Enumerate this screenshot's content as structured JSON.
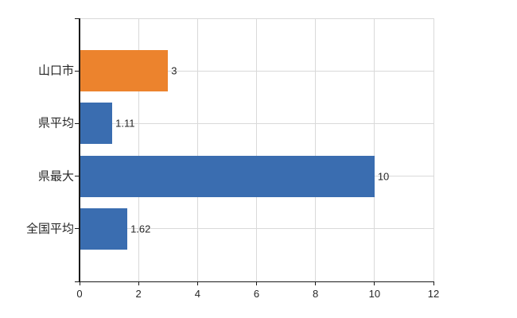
{
  "chart_data": {
    "type": "bar",
    "orientation": "horizontal",
    "title": "",
    "categories": [
      "山口市",
      "県平均",
      "県最大",
      "全国平均"
    ],
    "values": [
      3,
      1.11,
      10,
      1.62
    ],
    "data_labels": [
      "3",
      "1.11",
      "10",
      "1.62"
    ],
    "bar_colors": [
      "#EC832D",
      "#3A6DB0",
      "#3A6DB0",
      "#3A6DB0"
    ],
    "xlabel": "",
    "ylabel": "",
    "xlim": [
      0,
      12
    ],
    "xticks": [
      0,
      2,
      4,
      6,
      8,
      10,
      12
    ],
    "xtick_labels": [
      "0",
      "2",
      "4",
      "6",
      "8",
      "10",
      "12"
    ],
    "grid": true,
    "legend": false,
    "colors": {
      "axis": "#1a1a1a",
      "grid": "#d9d9d9",
      "text": "#262626",
      "background": "#ffffff",
      "bar_orange": "#EC832D",
      "bar_blue": "#3A6DB0"
    }
  }
}
